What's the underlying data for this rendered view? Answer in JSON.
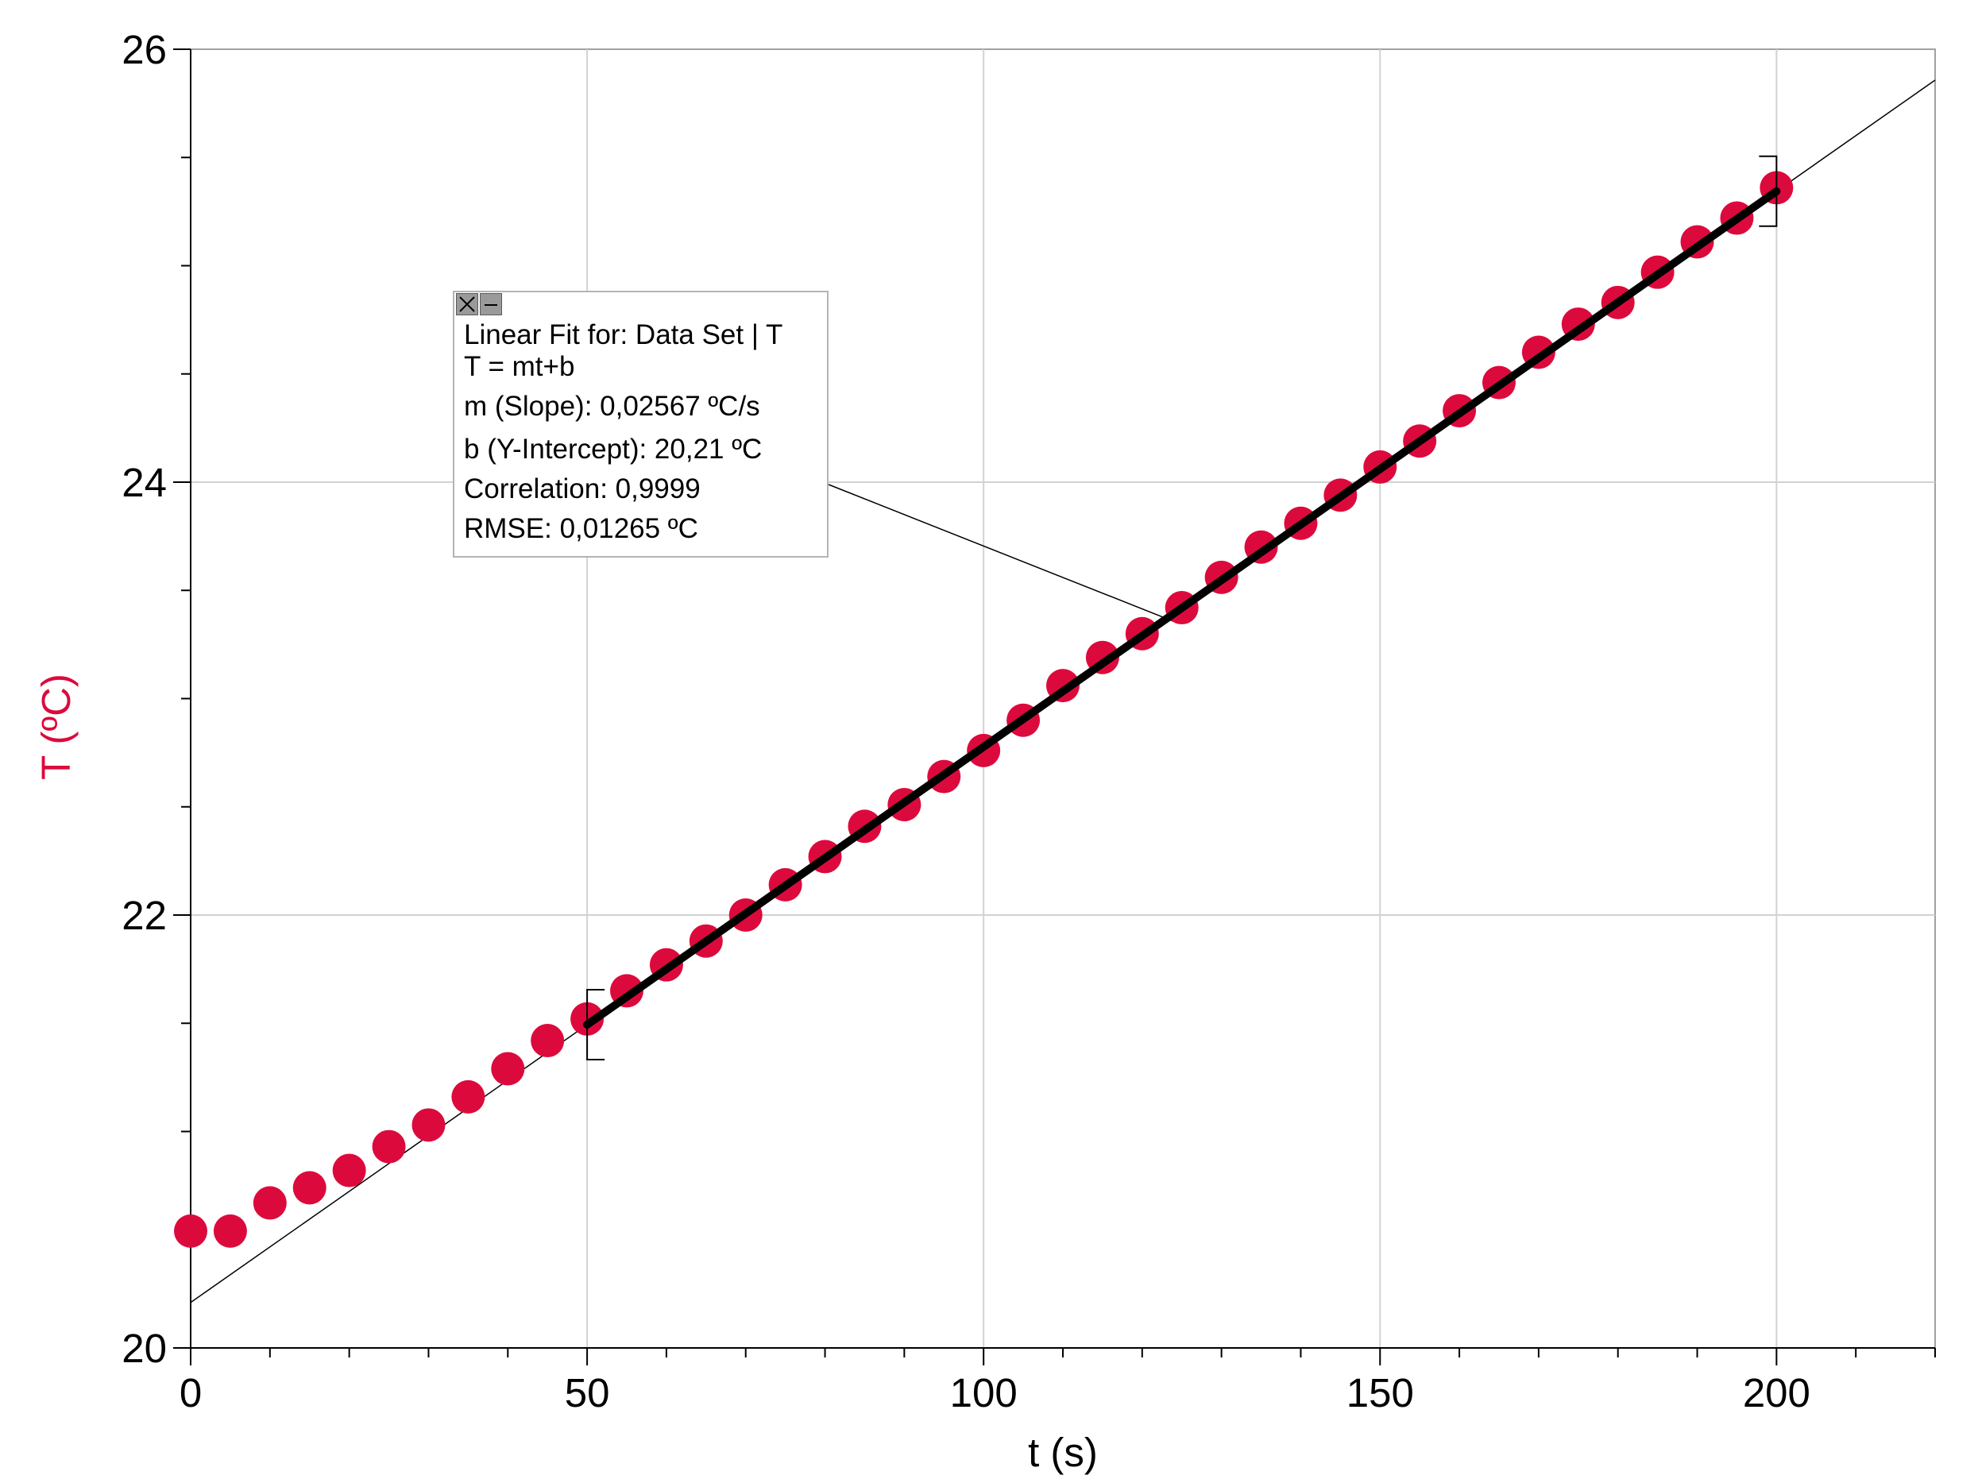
{
  "chart_data": {
    "type": "scatter",
    "xlabel": "t (s)",
    "ylabel": "T (ºC)",
    "xlim": [
      0,
      220
    ],
    "ylim": [
      20,
      26
    ],
    "x_ticks": [
      "0",
      "50",
      "100",
      "150",
      "200"
    ],
    "y_ticks": [
      "20",
      "22",
      "24",
      "26"
    ],
    "grid": true,
    "colors": {
      "points": "#dc0a3c",
      "fit": "#000000",
      "ylabel": "#dc0a3c"
    },
    "series": [
      {
        "x": [
          0,
          5,
          10,
          15,
          20,
          25,
          30,
          35,
          40,
          45,
          50,
          55,
          60,
          65,
          70,
          75,
          80,
          85,
          90,
          95,
          100,
          105,
          110,
          115,
          120,
          125,
          130,
          135,
          140,
          145,
          150,
          155,
          160,
          165,
          170,
          175,
          180,
          185,
          190,
          195,
          200
        ],
        "y": [
          20.54,
          20.54,
          20.67,
          20.74,
          20.82,
          20.93,
          21.03,
          21.16,
          21.29,
          21.42,
          21.52,
          21.65,
          21.77,
          21.88,
          22.0,
          22.14,
          22.27,
          22.41,
          22.51,
          22.64,
          22.76,
          22.9,
          23.06,
          23.19,
          23.3,
          23.42,
          23.56,
          23.7,
          23.81,
          23.94,
          24.07,
          24.19,
          24.33,
          24.46,
          24.6,
          24.73,
          24.83,
          24.97,
          25.11,
          25.22,
          25.36
        ]
      }
    ],
    "linear_fit": {
      "m": 0.02567,
      "b": 20.21,
      "range": [
        50,
        200
      ],
      "header": "Linear Fit for: Data Set | T",
      "equation": "T = mt+b",
      "slope_text": "m (Slope): 0,02567 ºC/s",
      "intercept_text": "b (Y-Intercept): 20,21 ºC",
      "correlation_text": "Correlation: 0,9999",
      "rmse_text": "RMSE: 0,01265 ºC"
    }
  }
}
